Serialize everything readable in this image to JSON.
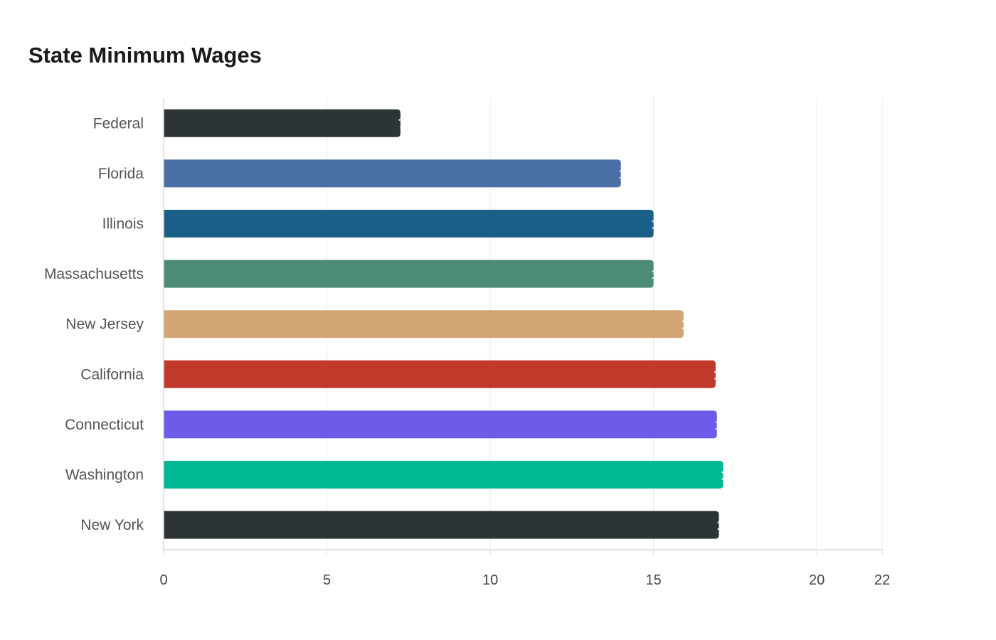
{
  "chart_data": {
    "type": "bar",
    "orientation": "horizontal",
    "title": "State Minimum Wages",
    "xlabel": "",
    "ylabel": "",
    "xlim": [
      0,
      22
    ],
    "x_ticks": [
      0,
      5,
      10,
      15,
      20,
      22
    ],
    "grid": true,
    "categories": [
      "Federal",
      "Florida",
      "Illinois",
      "Massachusetts",
      "New Jersey",
      "California",
      "Connecticut",
      "Washington",
      "New York"
    ],
    "values": [
      7.25,
      14,
      15,
      15,
      15.92,
      16.9,
      16.94,
      17.13,
      17
    ],
    "colors": [
      "#2d3436",
      "#4a6fa5",
      "#1a5f87",
      "#4d8b79",
      "#d4a574",
      "#c0392b",
      "#6c5ce7",
      "#00b894",
      "#2d3436"
    ]
  }
}
